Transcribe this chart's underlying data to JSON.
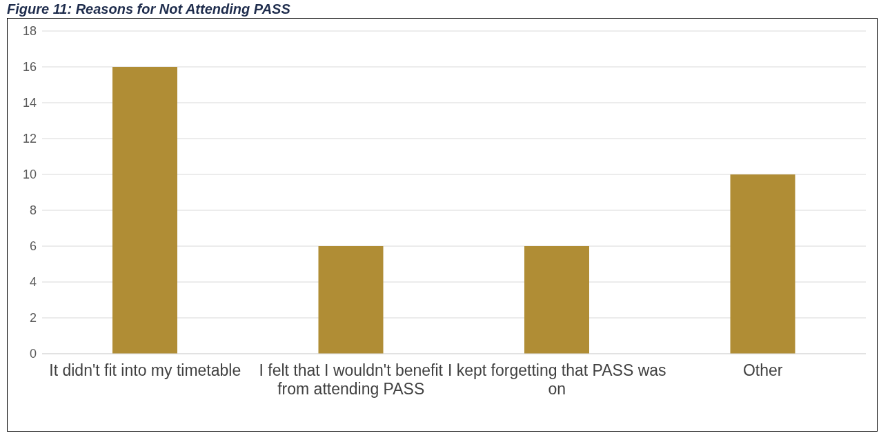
{
  "chart_data": {
    "type": "bar",
    "title": "Figure 11: Reasons for Not Attending PASS",
    "categories": [
      "It didn't fit into my timetable",
      "I felt that I wouldn't benefit from attending PASS",
      "I kept forgetting that PASS was on",
      "Other"
    ],
    "values": [
      16,
      6,
      6,
      10
    ],
    "color": "#b08d35",
    "ylim": [
      0,
      18
    ],
    "yticks": [
      0,
      2,
      4,
      6,
      8,
      10,
      12,
      14,
      16,
      18
    ],
    "grid": "y",
    "legend": false
  }
}
